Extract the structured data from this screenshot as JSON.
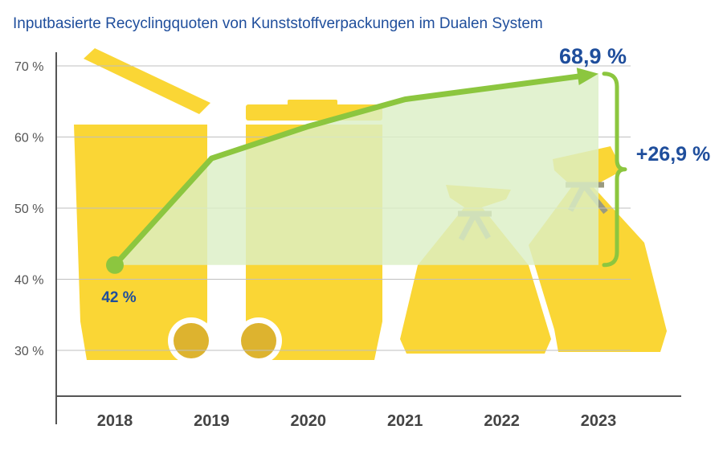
{
  "chart_data": {
    "type": "line",
    "title": "Inputbasierte Recyclingquoten von Kunststoffverpackungen im Dualen System",
    "categories": [
      "2018",
      "2019",
      "2020",
      "2021",
      "2022",
      "2023"
    ],
    "series": [
      {
        "values": [
          42,
          57,
          61.5,
          65.3,
          67.1,
          68.9
        ]
      }
    ],
    "ylim": [
      25,
      72
    ],
    "yticks": [
      30,
      40,
      50,
      60,
      70
    ],
    "ytick_labels": [
      "30 %",
      "40 %",
      "50 %",
      "60 %",
      "70 %"
    ],
    "grid": true,
    "annotations": {
      "start_label": "42 %",
      "end_label": "68,9 %",
      "delta_label": "+26,9 %"
    },
    "colors": {
      "line": "#8cc63f",
      "fill": "#dcefc6",
      "icon": "#fad635",
      "icon_shadow": "#ddb32f",
      "title": "#1f4e9c",
      "grid": "#bfbfbf"
    }
  }
}
